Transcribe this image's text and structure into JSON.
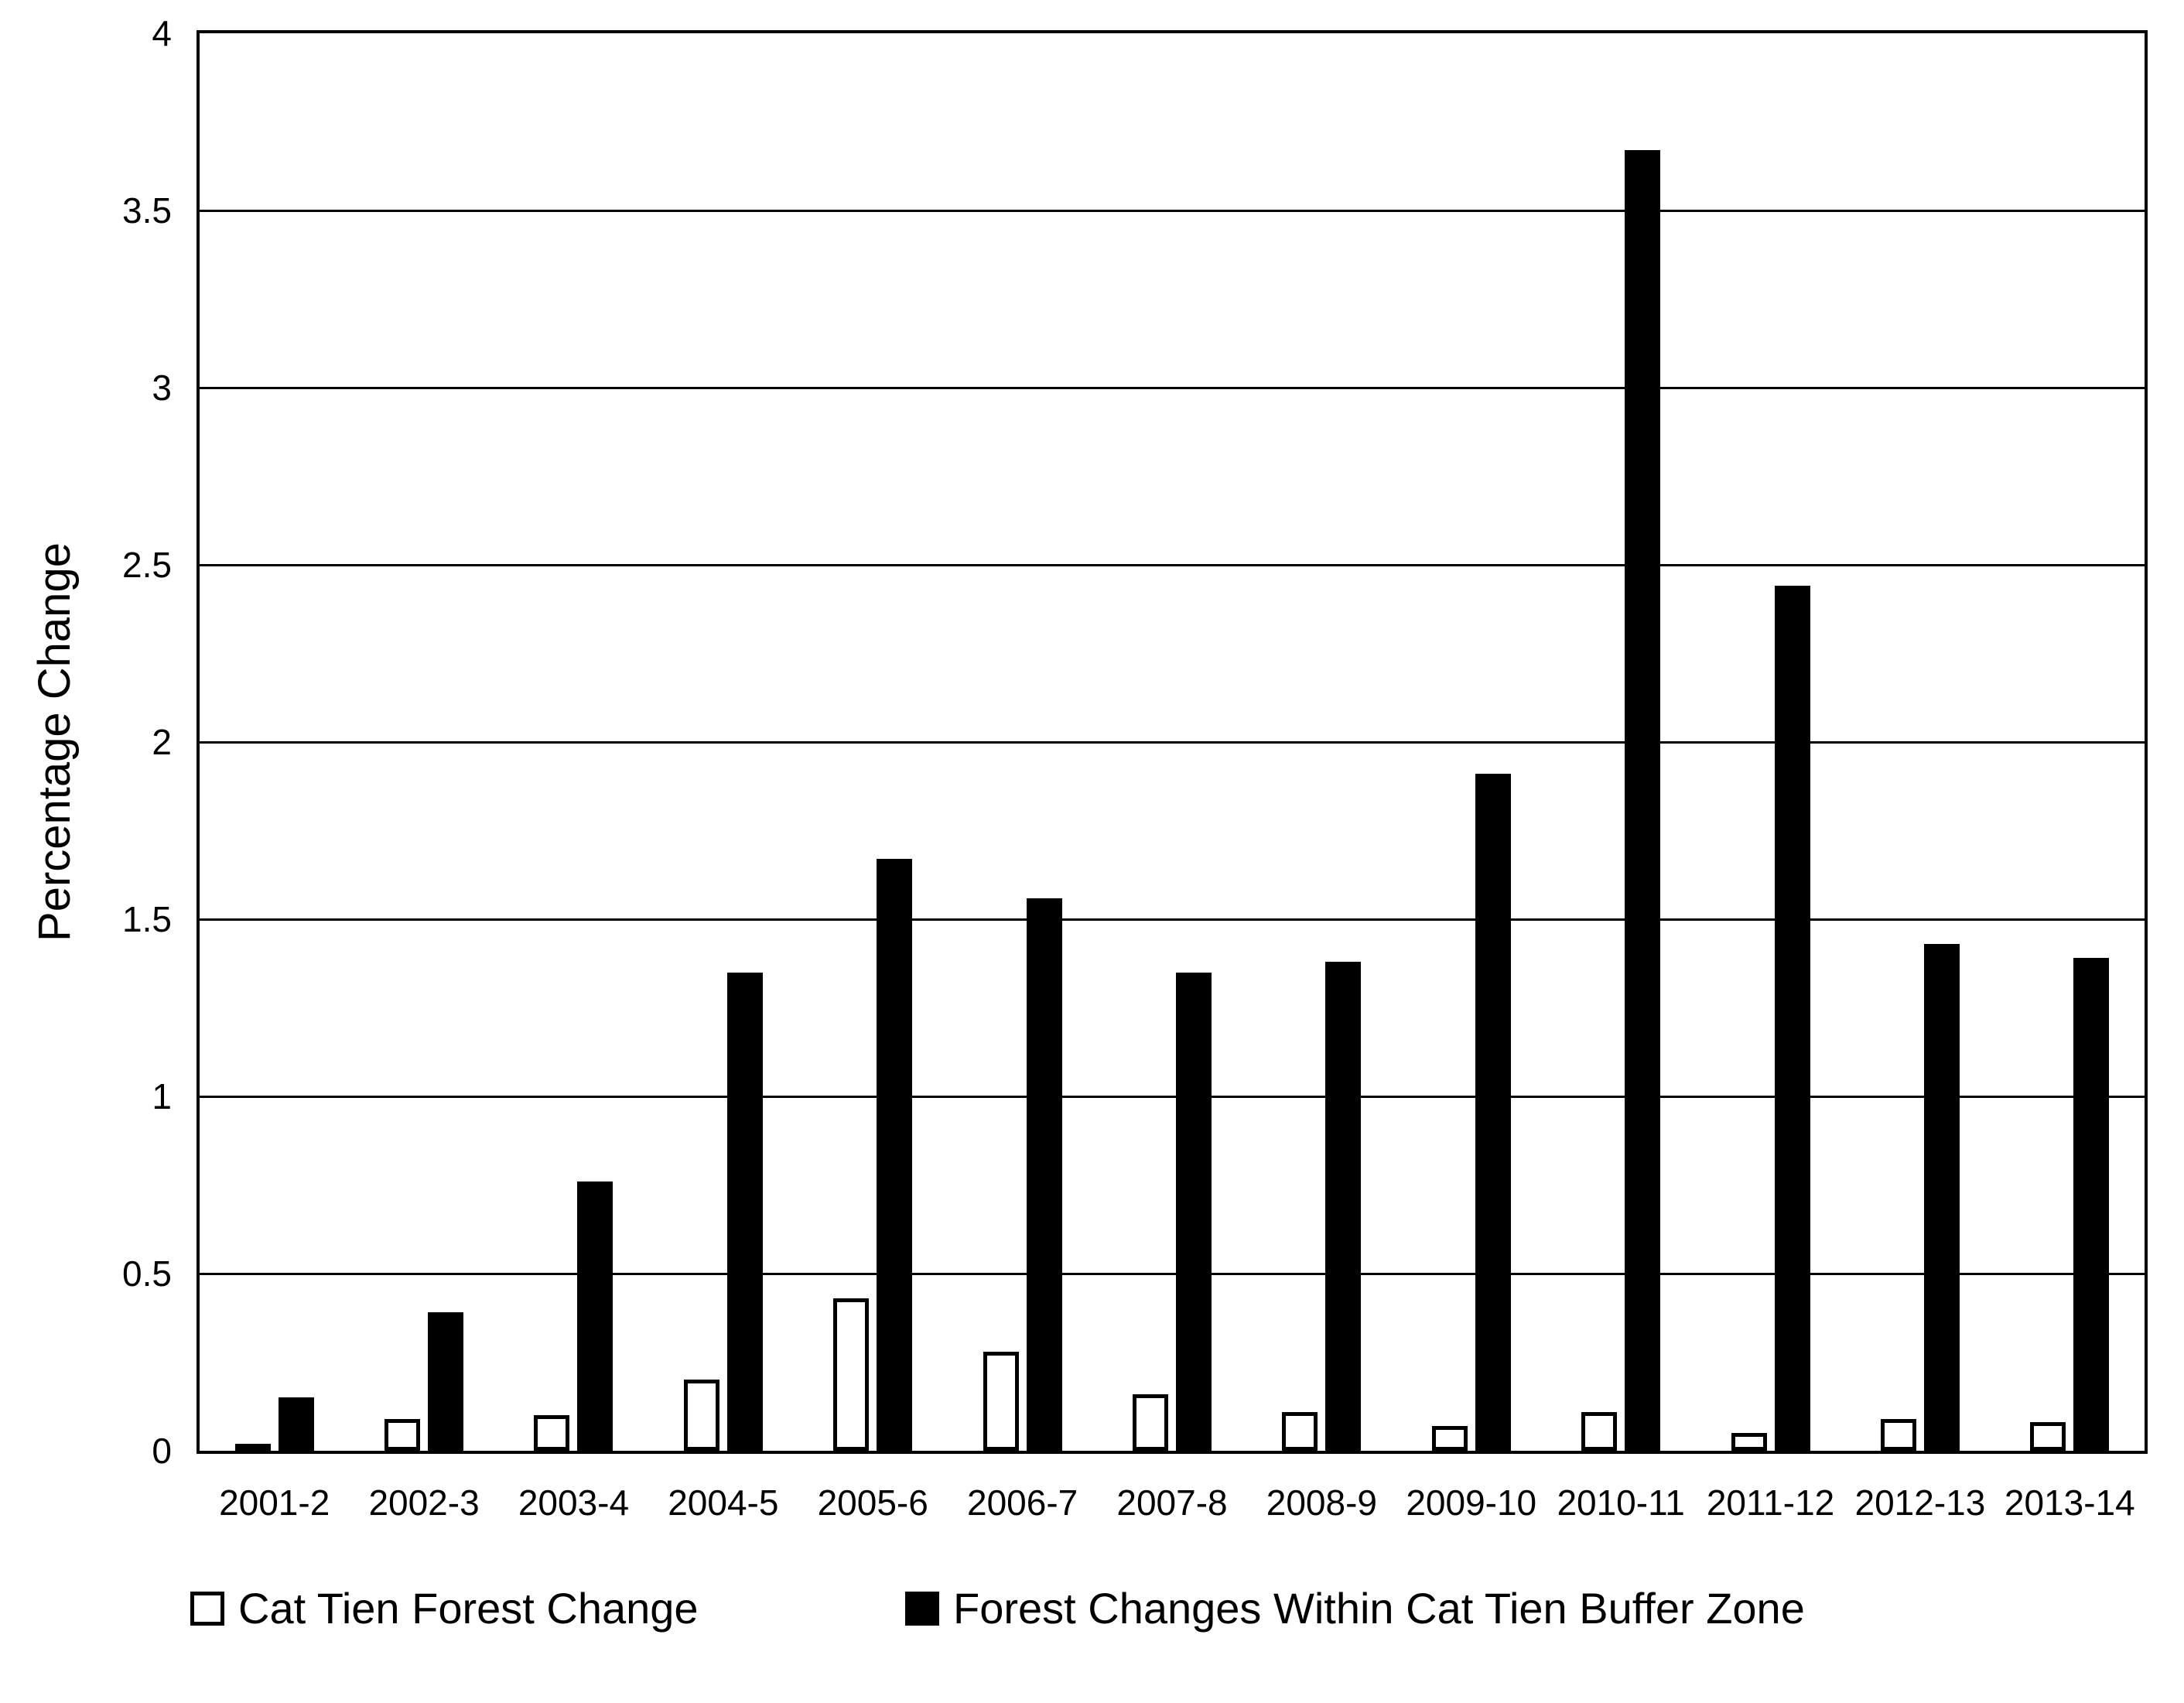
{
  "chart_data": {
    "type": "bar",
    "title": "",
    "xlabel": "",
    "ylabel": "Percentage Change",
    "categories": [
      "2001-2",
      "2002-3",
      "2003-4",
      "2004-5",
      "2005-6",
      "2006-7",
      "2007-8",
      "2008-9",
      "2009-10",
      "2010-11",
      "2011-12",
      "2012-13",
      "2013-14"
    ],
    "series": [
      {
        "name": "Cat Tien Forest Change",
        "key": "cat-tien-forest-change",
        "style": "outline",
        "fill": "#FFFFFF",
        "stroke": "#000000",
        "values": [
          0.02,
          0.09,
          0.1,
          0.2,
          0.43,
          0.28,
          0.16,
          0.11,
          0.07,
          0.11,
          0.05,
          0.09,
          0.08
        ]
      },
      {
        "name": "Forest Changes Within Cat Tien Buffer Zone",
        "key": "buffer-zone-forest-change",
        "style": "filled",
        "fill": "#000000",
        "stroke": "#000000",
        "values": [
          0.15,
          0.39,
          0.76,
          1.35,
          1.67,
          1.56,
          1.35,
          1.38,
          1.91,
          3.67,
          2.44,
          1.43,
          1.39
        ]
      }
    ],
    "ylim": [
      0,
      4
    ],
    "ytick_interval": 0.5,
    "ytick_labels": [
      "0",
      "0.5",
      "1",
      "1.5",
      "2",
      "2.5",
      "3",
      "3.5",
      "4"
    ],
    "grid": true,
    "legend_position": "bottom",
    "colors": {
      "axis": "#000000",
      "grid": "#000000",
      "text": "#000000",
      "background": "#FFFFFF"
    }
  }
}
